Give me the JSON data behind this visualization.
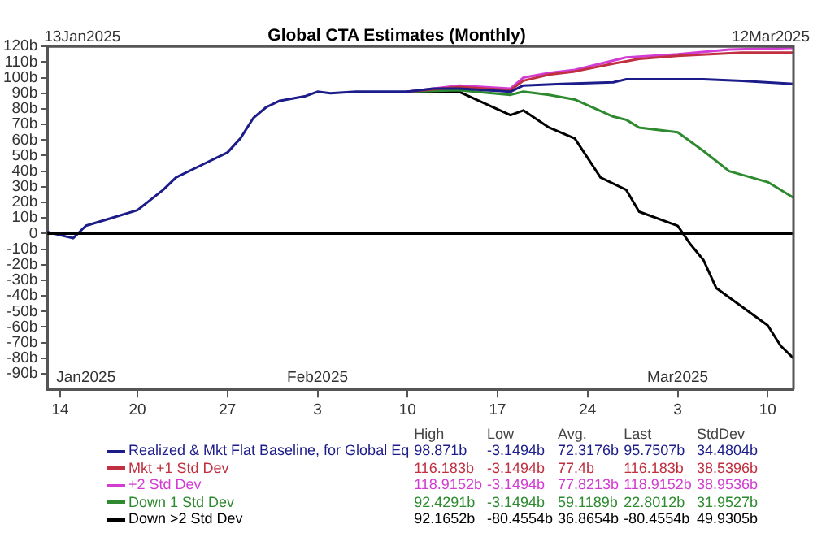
{
  "chart_data": {
    "type": "line",
    "title": "Global CTA Estimates (Monthly)",
    "xlim": [
      "2025-01-13",
      "2025-03-12"
    ],
    "xticks": [
      {
        "value": "2025-01-14",
        "label": "14"
      },
      {
        "value": "2025-01-20",
        "label": "20"
      },
      {
        "value": "2025-01-27",
        "label": "27"
      },
      {
        "value": "2025-02-03",
        "label": "3"
      },
      {
        "value": "2025-02-10",
        "label": "10"
      },
      {
        "value": "2025-02-17",
        "label": "17"
      },
      {
        "value": "2025-02-24",
        "label": "24"
      },
      {
        "value": "2025-03-03",
        "label": "3"
      },
      {
        "value": "2025-03-10",
        "label": "10"
      }
    ],
    "x2lim": [
      "2025-01-13",
      "2025-03-12"
    ],
    "x2ticks": [
      {
        "value": "2025-01-16",
        "label": "Jan2025"
      },
      {
        "value": "2025-02-03",
        "label": "Feb2025"
      },
      {
        "value": "2025-03-03",
        "label": "Mar2025"
      }
    ],
    "ylim": [
      -100,
      120
    ],
    "yticks": [
      {
        "value": -90,
        "label": "-90b"
      },
      {
        "value": -80,
        "label": "-80b"
      },
      {
        "value": -70,
        "label": "-70b"
      },
      {
        "value": -60,
        "label": "-60b"
      },
      {
        "value": -50,
        "label": "-50b"
      },
      {
        "value": -40,
        "label": "-40b"
      },
      {
        "value": -30,
        "label": "-30b"
      },
      {
        "value": -20,
        "label": "-20b"
      },
      {
        "value": -10,
        "label": "-10b"
      },
      0,
      {
        "value": 10,
        "label": "10b"
      },
      {
        "value": 20,
        "label": "20b"
      },
      {
        "value": 30,
        "label": "30b"
      },
      {
        "value": 40,
        "label": "40b"
      },
      {
        "value": 50,
        "label": "50b"
      },
      {
        "value": 60,
        "label": "60b"
      },
      {
        "value": 70,
        "label": "70b"
      },
      {
        "value": 80,
        "label": "80b"
      },
      {
        "value": 90,
        "label": "90b"
      },
      {
        "value": 100,
        "label": "100b"
      },
      {
        "value": 110,
        "label": "110b"
      },
      {
        "value": 120,
        "label": "120b"
      }
    ],
    "grid": false,
    "legend": "bottom",
    "ref_lines": [
      {
        "axis": "y",
        "value": 0,
        "color": "#000000"
      }
    ],
    "annotations": [
      "13Jan2025",
      "12Mar2025",
      "High",
      "Low",
      "Avg.",
      "Last",
      "StdDev",
      "98.871b",
      "-3.1494b",
      "72.3176b",
      "95.7507b",
      "34.4804b",
      "116.183b",
      "-3.1494b",
      "77.4b",
      "116.183b",
      "38.5396b",
      "118.9152b",
      "-3.1494b",
      "77.8213b",
      "118.9152b",
      "38.9536b",
      "92.4291b",
      "-3.1494b",
      "59.1189b",
      "22.8012b",
      "31.9527b",
      "92.1652b",
      "-80.4554b",
      "36.8654b",
      "-80.4554b",
      "49.9305b"
    ],
    "series": [
      {
        "name": "Realized & Mkt Flat Baseline, for Global Eq",
        "color": "#1c1c8a",
        "x": [
          "2025-01-13",
          "2025-01-15",
          "2025-01-16",
          "2025-01-18",
          "2025-01-20",
          "2025-01-22",
          "2025-01-23",
          "2025-01-25",
          "2025-01-27",
          "2025-01-28",
          "2025-01-29",
          "2025-01-30",
          "2025-01-31",
          "2025-02-02",
          "2025-02-03",
          "2025-02-04",
          "2025-02-06",
          "2025-02-10",
          "2025-02-12",
          "2025-02-14",
          "2025-02-18",
          "2025-02-19",
          "2025-02-22",
          "2025-02-26",
          "2025-02-27",
          "2025-03-05",
          "2025-03-08",
          "2025-03-12"
        ],
        "values": [
          1,
          -3,
          5,
          10,
          15,
          28,
          36,
          44,
          52,
          61,
          74,
          81,
          85,
          88,
          91,
          90,
          91,
          91,
          93,
          93,
          91,
          95,
          96,
          97,
          99,
          99,
          98,
          96
        ]
      },
      {
        "name": "Mkt +1 Std Dev",
        "color": "#c03040",
        "x": [
          "2025-02-10",
          "2025-02-14",
          "2025-02-18",
          "2025-02-19",
          "2025-02-21",
          "2025-02-23",
          "2025-02-26",
          "2025-02-28",
          "2025-03-03",
          "2025-03-08",
          "2025-03-12"
        ],
        "values": [
          91,
          94,
          92,
          98,
          102,
          104,
          109,
          112,
          114,
          116,
          116
        ]
      },
      {
        "name": "+2 Std Dev",
        "color": "#d23cd2",
        "x": [
          "2025-02-10",
          "2025-02-14",
          "2025-02-18",
          "2025-02-19",
          "2025-02-21",
          "2025-02-23",
          "2025-02-26",
          "2025-02-27",
          "2025-03-03",
          "2025-03-07",
          "2025-03-12"
        ],
        "values": [
          91,
          95,
          93,
          100,
          103,
          105,
          111,
          113,
          115,
          118,
          119
        ]
      },
      {
        "name": "Down 1 Std Dev",
        "color": "#2e8a2e",
        "x": [
          "2025-02-10",
          "2025-02-14",
          "2025-02-18",
          "2025-02-19",
          "2025-02-21",
          "2025-02-23",
          "2025-02-26",
          "2025-02-27",
          "2025-02-28",
          "2025-03-03",
          "2025-03-05",
          "2025-03-07",
          "2025-03-10",
          "2025-03-12"
        ],
        "values": [
          91,
          92,
          89,
          91,
          89,
          86,
          75,
          73,
          68,
          65,
          53,
          40,
          33,
          23
        ]
      },
      {
        "name": "Down >2 Std Dev",
        "color": "#000000",
        "x": [
          "2025-02-10",
          "2025-02-14",
          "2025-02-18",
          "2025-02-19",
          "2025-02-21",
          "2025-02-23",
          "2025-02-25",
          "2025-02-27",
          "2025-02-28",
          "2025-03-03",
          "2025-03-04",
          "2025-03-05",
          "2025-03-06",
          "2025-03-08",
          "2025-03-10",
          "2025-03-11",
          "2025-03-12"
        ],
        "values": [
          91,
          91,
          76,
          79,
          68,
          61,
          36,
          28,
          14,
          5,
          -7,
          -17,
          -35,
          -47,
          -59,
          -72,
          -80
        ]
      }
    ]
  }
}
